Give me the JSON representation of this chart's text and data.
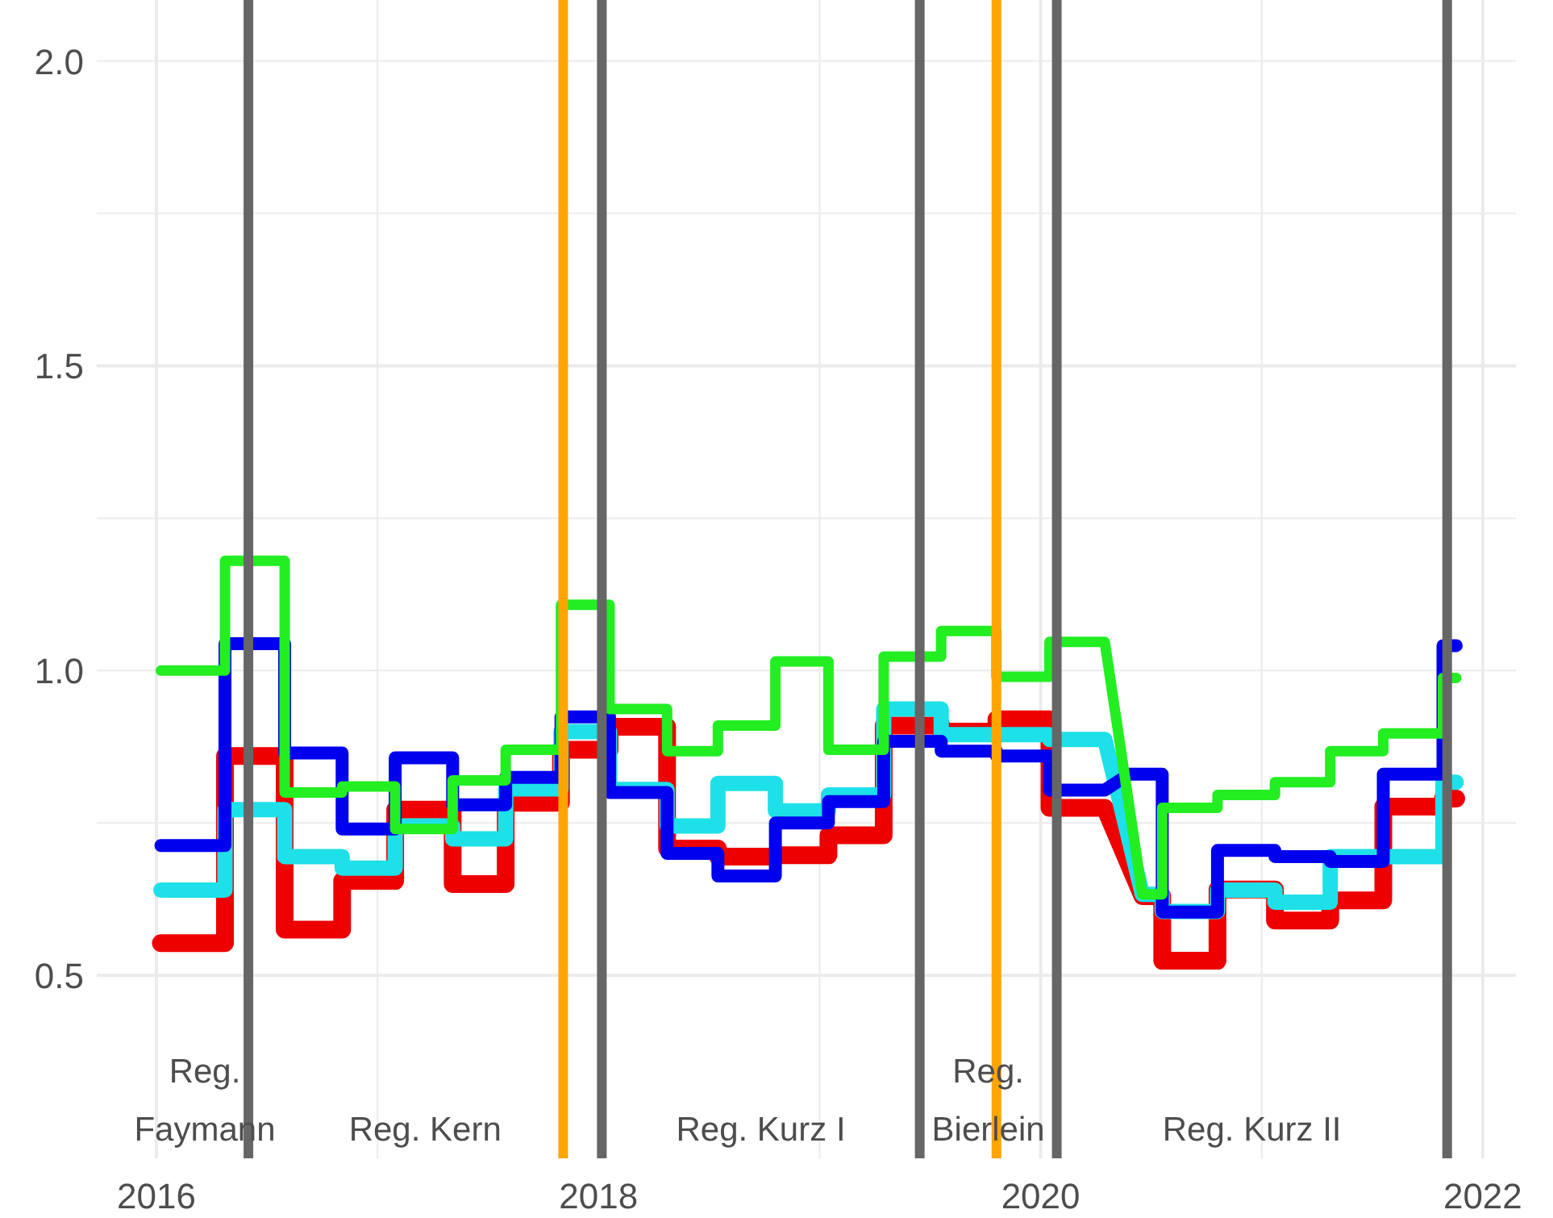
{
  "chart_data": {
    "type": "line",
    "xlim": [
      2015.73,
      2022.15
    ],
    "ylim": [
      0.2,
      2.1
    ],
    "xticks": [
      2016,
      {
        "value": 2017,
        "label": null
      },
      2018,
      {
        "value": 2019,
        "label": null
      },
      2020,
      {
        "value": 2021,
        "label": null
      },
      2022
    ],
    "yticks": [
      0.5,
      {
        "value": 0.75,
        "label": null
      },
      {
        "value": 1,
        "label": "1.0"
      },
      {
        "value": 1.25,
        "label": null
      },
      1.5,
      {
        "value": 1.75,
        "label": null
      },
      {
        "value": 2,
        "label": "2.0"
      }
    ],
    "grid": true,
    "line_style": "solid",
    "series": [
      {
        "color": "#ee0000",
        "x": [
          2016.02,
          2016.31,
          2016.31,
          2016.58,
          2016.58,
          2016.84,
          2016.84,
          2017.08,
          2017.08,
          2017.34,
          2017.34,
          2017.58,
          2017.58,
          2017.83,
          2017.83,
          2018.05,
          2018.05,
          2018.31,
          2018.31,
          2018.54,
          2018.54,
          2018.8,
          2018.8,
          2019.04,
          2019.04,
          2019.29,
          2019.29,
          2019.55,
          2019.55,
          2019.8,
          2019.8,
          2020.04,
          2020.04,
          2020.29,
          2020.46,
          2020.55,
          2020.55,
          2020.8,
          2020.8,
          2021.06,
          2021.06,
          2021.31,
          2021.31,
          2021.55,
          2021.55,
          2021.82,
          2021.82,
          2021.88
        ],
        "values": [
          0.553,
          0.553,
          0.86,
          0.86,
          0.575,
          0.575,
          0.655,
          0.655,
          0.772,
          0.772,
          0.65,
          0.65,
          0.783,
          0.783,
          0.87,
          0.87,
          0.908,
          0.908,
          0.708,
          0.708,
          0.695,
          0.695,
          0.697,
          0.697,
          0.73,
          0.73,
          0.91,
          0.91,
          0.9,
          0.9,
          0.92,
          0.92,
          0.775,
          0.775,
          0.63,
          0.63,
          0.524,
          0.524,
          0.641,
          0.641,
          0.59,
          0.59,
          0.623,
          0.623,
          0.777,
          0.777,
          0.79,
          0.79
        ]
      },
      {
        "color": "#1ee0e8",
        "x": [
          2016.02,
          2016.31,
          2016.31,
          2016.58,
          2016.58,
          2016.84,
          2016.84,
          2017.08,
          2017.08,
          2017.34,
          2017.34,
          2017.58,
          2017.58,
          2017.83,
          2017.83,
          2018.05,
          2018.05,
          2018.31,
          2018.31,
          2018.54,
          2018.54,
          2018.8,
          2018.8,
          2019.04,
          2019.04,
          2019.29,
          2019.29,
          2019.55,
          2019.55,
          2019.8,
          2019.8,
          2020.04,
          2020.04,
          2020.29,
          2020.46,
          2020.55,
          2020.55,
          2020.8,
          2020.8,
          2021.06,
          2021.06,
          2021.31,
          2021.31,
          2021.55,
          2021.55,
          2021.82,
          2021.82,
          2021.88
        ],
        "values": [
          0.64,
          0.64,
          0.772,
          0.772,
          0.695,
          0.695,
          0.676,
          0.676,
          0.745,
          0.745,
          0.724,
          0.724,
          0.806,
          0.806,
          0.9,
          0.9,
          0.805,
          0.805,
          0.745,
          0.745,
          0.815,
          0.815,
          0.77,
          0.77,
          0.796,
          0.796,
          0.937,
          0.937,
          0.895,
          0.895,
          0.895,
          0.895,
          0.887,
          0.887,
          0.633,
          0.633,
          0.605,
          0.605,
          0.64,
          0.64,
          0.62,
          0.62,
          0.695,
          0.695,
          0.695,
          0.695,
          0.817,
          0.817
        ]
      },
      {
        "color": "#0000ee",
        "x": [
          2016.02,
          2016.31,
          2016.31,
          2016.58,
          2016.58,
          2016.84,
          2016.84,
          2017.08,
          2017.08,
          2017.34,
          2017.34,
          2017.58,
          2017.58,
          2017.83,
          2017.83,
          2018.05,
          2018.05,
          2018.31,
          2018.31,
          2018.54,
          2018.54,
          2018.8,
          2018.8,
          2019.04,
          2019.04,
          2019.29,
          2019.29,
          2019.55,
          2019.55,
          2019.8,
          2019.8,
          2020.04,
          2020.04,
          2020.29,
          2020.4,
          2020.55,
          2020.55,
          2020.8,
          2020.8,
          2021.06,
          2021.06,
          2021.31,
          2021.31,
          2021.55,
          2021.55,
          2021.82,
          2021.82,
          2021.88
        ],
        "values": [
          0.713,
          0.713,
          1.044,
          1.044,
          0.865,
          0.865,
          0.74,
          0.74,
          0.857,
          0.857,
          0.78,
          0.78,
          0.825,
          0.825,
          0.924,
          0.924,
          0.8,
          0.8,
          0.7,
          0.7,
          0.663,
          0.663,
          0.75,
          0.75,
          0.785,
          0.785,
          0.884,
          0.884,
          0.868,
          0.868,
          0.86,
          0.86,
          0.804,
          0.804,
          0.83,
          0.83,
          0.604,
          0.604,
          0.705,
          0.705,
          0.695,
          0.695,
          0.687,
          0.687,
          0.83,
          0.83,
          1.041,
          1.041
        ]
      },
      {
        "color": "#22ee22",
        "x": [
          2016.02,
          2016.31,
          2016.31,
          2016.58,
          2016.58,
          2016.84,
          2016.84,
          2017.08,
          2017.08,
          2017.34,
          2017.34,
          2017.58,
          2017.58,
          2017.83,
          2017.83,
          2018.05,
          2018.05,
          2018.31,
          2018.31,
          2018.54,
          2018.54,
          2018.8,
          2018.8,
          2019.04,
          2019.04,
          2019.29,
          2019.29,
          2019.55,
          2019.55,
          2019.8,
          2019.8,
          2020.04,
          2020.04,
          2020.29,
          2020.46,
          2020.55,
          2020.55,
          2020.8,
          2020.8,
          2021.06,
          2021.06,
          2021.31,
          2021.31,
          2021.55,
          2021.55,
          2021.82,
          2021.82,
          2021.88
        ],
        "values": [
          1.0,
          1.0,
          1.18,
          1.18,
          0.8,
          0.8,
          0.81,
          0.81,
          0.74,
          0.74,
          0.82,
          0.82,
          0.87,
          0.87,
          1.108,
          1.108,
          0.937,
          0.937,
          0.868,
          0.868,
          0.91,
          0.91,
          1.015,
          1.015,
          0.87,
          0.87,
          1.023,
          1.023,
          1.065,
          1.065,
          0.99,
          0.99,
          1.047,
          1.047,
          0.633,
          0.633,
          0.775,
          0.775,
          0.796,
          0.796,
          0.817,
          0.817,
          0.868,
          0.868,
          0.897,
          0.897,
          0.988,
          0.988
        ]
      }
    ],
    "ref_lines": [
      {
        "axis": "x",
        "value": 2016.416,
        "color": "#666666"
      },
      {
        "axis": "x",
        "value": 2018.015,
        "color": "#666666"
      },
      {
        "axis": "x",
        "value": 2019.453,
        "color": "#666666"
      },
      {
        "axis": "x",
        "value": 2020.073,
        "color": "#666666"
      },
      {
        "axis": "x",
        "value": 2021.839,
        "color": "#666666"
      },
      {
        "axis": "x",
        "value": 2017.84,
        "color": "#ffa500"
      },
      {
        "axis": "x",
        "value": 2019.8,
        "color": "#ffa500"
      }
    ],
    "annotations": [
      "Reg.\nFaymann",
      "Reg. Kern",
      "Reg. Kurz I",
      "Reg.\nBierlein",
      "Reg. Kurz II"
    ]
  }
}
